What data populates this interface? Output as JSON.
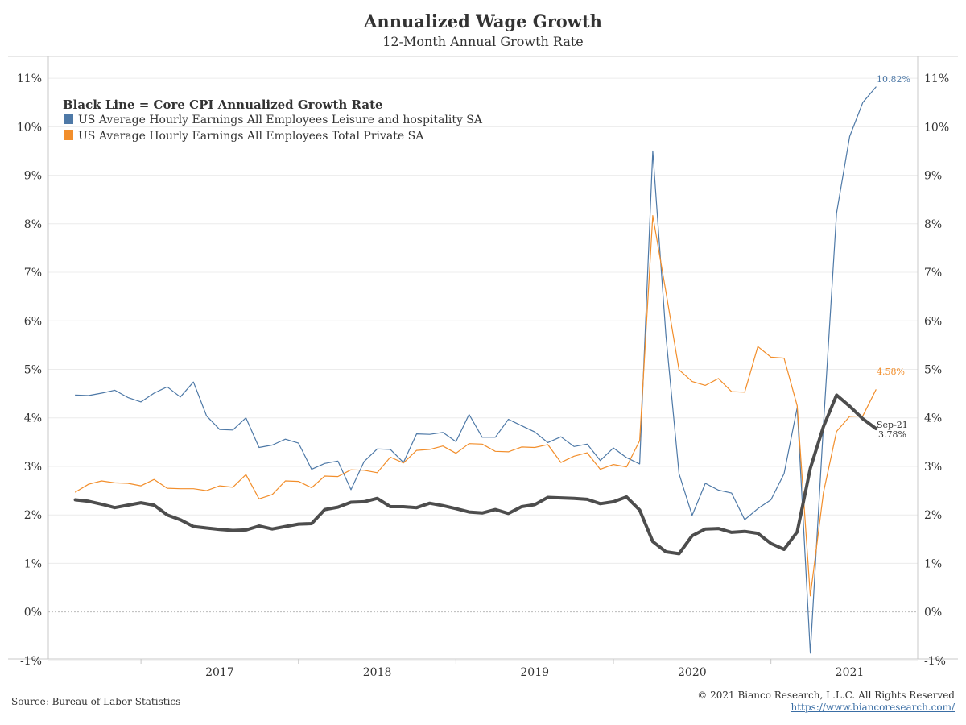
{
  "header": {
    "title": "Annualized Wage Growth",
    "subtitle": "12-Month Annual Growth Rate"
  },
  "footer": {
    "source": "Source: Bureau of Labor Statistics",
    "copyright": "© 2021 Bianco Research, L.L.C. All Rights Reserved",
    "url": "https://www.biancoresearch.com/"
  },
  "chart_data": {
    "type": "line",
    "title": "Annualized Wage Growth",
    "subtitle": "12-Month Annual Growth Rate",
    "legend_title": "Black Line = Core CPI Annualized Growth Rate",
    "legend_placement": "top-left",
    "grid": true,
    "ylim": [
      -1.5,
      11.5
    ],
    "yticks": [
      -1,
      0,
      1,
      2,
      3,
      4,
      5,
      6,
      7,
      8,
      9,
      10,
      11
    ],
    "ytick_labels": [
      "-1%",
      "0%",
      "1%",
      "2%",
      "3%",
      "4%",
      "5%",
      "6%",
      "7%",
      "8%",
      "9%",
      "10%",
      "11%"
    ],
    "xlim": [
      "2016-06",
      "2021-12"
    ],
    "xticks": [
      "2017",
      "2018",
      "2019",
      "2020",
      "2021"
    ],
    "x_start": "2016-08",
    "x_end": "2021-09",
    "x_step": "monthly",
    "series": [
      {
        "name": "US Average Hourly Earnings All Employees Leisure and hospitality SA",
        "color": "#4e79a7",
        "values": [
          4.47,
          4.46,
          4.51,
          4.57,
          4.42,
          4.33,
          4.51,
          4.64,
          4.43,
          4.74,
          4.04,
          3.76,
          3.75,
          4.0,
          3.39,
          3.44,
          3.56,
          3.48,
          2.94,
          3.06,
          3.11,
          2.52,
          3.1,
          3.36,
          3.35,
          3.08,
          3.67,
          3.66,
          3.7,
          3.51,
          4.07,
          3.6,
          3.6,
          3.97,
          3.84,
          3.71,
          3.49,
          3.61,
          3.41,
          3.46,
          3.12,
          3.38,
          3.18,
          3.05,
          9.5,
          5.7,
          2.85,
          1.99,
          2.65,
          2.51,
          2.45,
          1.9,
          2.13,
          2.31,
          2.85,
          4.21,
          -0.85,
          3.85,
          8.22,
          9.8,
          10.5,
          10.82
        ],
        "end_label": "10.82%"
      },
      {
        "name": "US Average Hourly Earnings All Employees Total Private SA",
        "color": "#f28e2b",
        "values": [
          2.47,
          2.63,
          2.7,
          2.66,
          2.65,
          2.6,
          2.73,
          2.55,
          2.54,
          2.54,
          2.5,
          2.6,
          2.57,
          2.83,
          2.33,
          2.42,
          2.7,
          2.69,
          2.56,
          2.8,
          2.79,
          2.93,
          2.92,
          2.87,
          3.19,
          3.07,
          3.33,
          3.35,
          3.42,
          3.27,
          3.47,
          3.46,
          3.31,
          3.3,
          3.4,
          3.39,
          3.45,
          3.08,
          3.21,
          3.28,
          2.94,
          3.04,
          2.99,
          3.53,
          8.17,
          6.6,
          4.99,
          4.75,
          4.67,
          4.81,
          4.54,
          4.53,
          5.47,
          5.25,
          5.23,
          4.25,
          0.33,
          2.46,
          3.72,
          4.03,
          4.04,
          4.58
        ],
        "end_label": "4.58%"
      },
      {
        "name": "Core CPI Annualized Growth Rate",
        "color": "#4d4d4d",
        "values": [
          2.31,
          2.28,
          2.22,
          2.15,
          2.2,
          2.25,
          2.2,
          2.0,
          1.9,
          1.76,
          1.73,
          1.7,
          1.68,
          1.69,
          1.77,
          1.71,
          1.76,
          1.81,
          1.82,
          2.11,
          2.16,
          2.26,
          2.27,
          2.34,
          2.17,
          2.17,
          2.15,
          2.24,
          2.19,
          2.13,
          2.06,
          2.04,
          2.11,
          2.03,
          2.17,
          2.21,
          2.36,
          2.35,
          2.34,
          2.32,
          2.23,
          2.27,
          2.37,
          2.1,
          1.45,
          1.24,
          1.2,
          1.57,
          1.71,
          1.72,
          1.64,
          1.66,
          1.62,
          1.41,
          1.29,
          1.65,
          2.96,
          3.82,
          4.47,
          4.24,
          3.98,
          3.78
        ],
        "end_label": "Sep-21\n3.78%"
      }
    ],
    "annotations": {
      "leisure_end": "10.82%",
      "private_end": "4.58%",
      "cpi_end_date": "Sep-21",
      "cpi_end_value": "3.78%"
    }
  }
}
